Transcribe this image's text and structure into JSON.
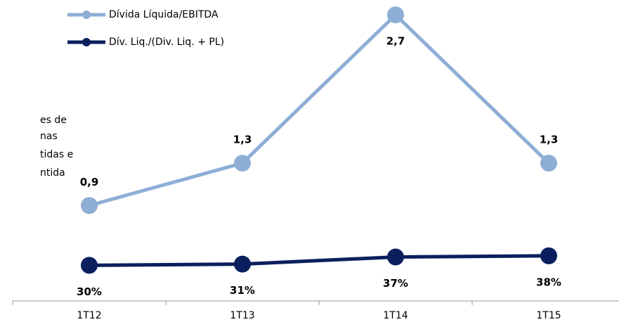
{
  "chart_data": {
    "type": "line",
    "categories": [
      "1T12",
      "1T13",
      "1T14",
      "1T15"
    ],
    "series": [
      {
        "name": "Dívida Líquida/EBITDA",
        "color": "#8eaed6",
        "values": [
          0.9,
          1.3,
          2.7,
          1.3
        ],
        "value_labels": [
          "0,9",
          "1,3",
          "2,7",
          "1,3"
        ]
      },
      {
        "name": "Dív. Liq./(Div. Liq. + PL)",
        "color": "#0b1f5e",
        "axis": "y2",
        "values": [
          30,
          31,
          37,
          38
        ],
        "value_labels": [
          "30%",
          "31%",
          "37%",
          "38%"
        ]
      }
    ],
    "ylim": [
      0,
      2.8
    ],
    "y2lim": [
      0,
      250
    ],
    "annotations": [
      "es de",
      "nas",
      "tidas e",
      "ntida"
    ]
  }
}
